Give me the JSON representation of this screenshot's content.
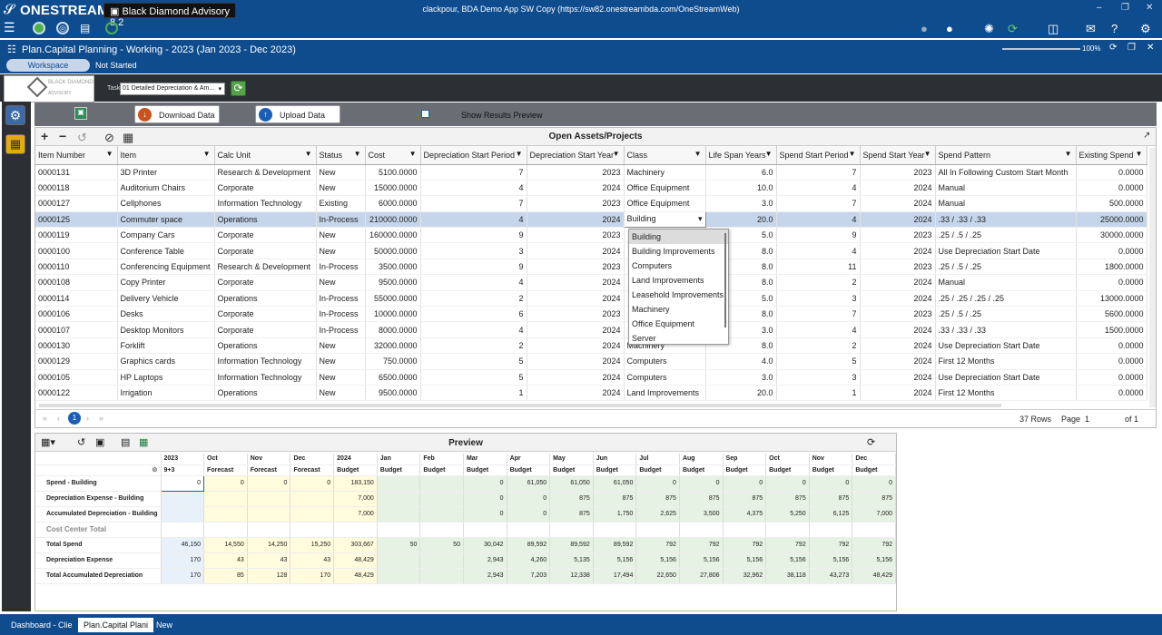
{
  "topbar": {
    "brand": "ONESTREAM",
    "app_name": "Black Diamond Advisory 8.2",
    "connection": "clackpour, BDA Demo App SW Copy (https://sw82.onestreambda.com/OneStreamWeb)",
    "zoom": "100%"
  },
  "titlebar": {
    "title": "Plan.Capital Planning  -  Working  -  2023 (Jan 2023 - Dec 2023)",
    "workspace_tab": "Workspace",
    "status": "Not Started"
  },
  "header": {
    "logo_text": "BLACK DIAMOND",
    "logo_sub": "ADVISORY",
    "task_label": "Task",
    "task_value": "01 Detailed Depreciation & Am..."
  },
  "toolbar": {
    "download_label": "Download Data",
    "upload_label": "Upload Data",
    "show_preview_label": "Show Results Preview"
  },
  "grid": {
    "title": "Open Assets/Projects",
    "columns": [
      "Item Number",
      "Item",
      "Calc Unit",
      "Status",
      "Cost",
      "Depreciation Start Period",
      "Depreciation Start Year",
      "Class",
      "Life Span Years",
      "Spend Start Period",
      "Spend Start Year",
      "Spend Pattern",
      "Existing Spend"
    ],
    "rows": [
      [
        "0000131",
        "3D Printer",
        "Research & Development",
        "New",
        "5100.0000",
        "7",
        "2023",
        "Machinery",
        "6.0",
        "7",
        "2023",
        "All In Following Custom Start Month",
        "0.0000"
      ],
      [
        "0000118",
        "Auditorium Chairs",
        "Corporate",
        "New",
        "15000.0000",
        "4",
        "2024",
        "Office Equipment",
        "10.0",
        "4",
        "2024",
        "Manual",
        "0.0000"
      ],
      [
        "0000127",
        "Cellphones",
        "Information Technology",
        "Existing",
        "6000.0000",
        "7",
        "2023",
        "Office Equipment",
        "3.0",
        "7",
        "2024",
        "Manual",
        "500.0000"
      ],
      [
        "0000125",
        "Commuter space",
        "Operations",
        "In-Process",
        "210000.0000",
        "4",
        "2024",
        "Building",
        "20.0",
        "4",
        "2024",
        ".33 / .33 / .33",
        "25000.0000"
      ],
      [
        "0000119",
        "Company Cars",
        "Corporate",
        "New",
        "160000.0000",
        "9",
        "2023",
        "",
        "5.0",
        "9",
        "2023",
        ".25  / .5 / .25",
        "30000.0000"
      ],
      [
        "0000100",
        "Conference Table",
        "Corporate",
        "New",
        "50000.0000",
        "3",
        "2024",
        "",
        "8.0",
        "4",
        "2024",
        "Use Depreciation Start Date",
        "0.0000"
      ],
      [
        "0000110",
        "Conferencing Equipment",
        "Research & Development",
        "In-Process",
        "3500.0000",
        "9",
        "2023",
        "",
        "8.0",
        "11",
        "2023",
        ".25  / .5 / .25",
        "1800.0000"
      ],
      [
        "0000108",
        "Copy Printer",
        "Corporate",
        "New",
        "9500.0000",
        "4",
        "2024",
        "",
        "8.0",
        "2",
        "2024",
        "Manual",
        "0.0000"
      ],
      [
        "0000114",
        "Delivery Vehicle",
        "Operations",
        "In-Process",
        "55000.0000",
        "2",
        "2024",
        "",
        "5.0",
        "3",
        "2024",
        ".25 / .25 / .25 / .25",
        "13000.0000"
      ],
      [
        "0000106",
        "Desks",
        "Corporate",
        "In-Process",
        "10000.0000",
        "6",
        "2023",
        "",
        "8.0",
        "7",
        "2023",
        ".25  / .5 / .25",
        "5600.0000"
      ],
      [
        "0000107",
        "Desktop Monitors",
        "Corporate",
        "In-Process",
        "8000.0000",
        "4",
        "2024",
        "",
        "3.0",
        "4",
        "2024",
        ".33 / .33 / .33",
        "1500.0000"
      ],
      [
        "0000130",
        "Forklift",
        "Operations",
        "New",
        "32000.0000",
        "2",
        "2024",
        "Machinery",
        "8.0",
        "2",
        "2024",
        "Use Depreciation Start Date",
        "0.0000"
      ],
      [
        "0000129",
        "Graphics cards",
        "Information Technology",
        "New",
        "750.0000",
        "5",
        "2024",
        "Computers",
        "4.0",
        "5",
        "2024",
        "First 12 Months",
        "0.0000"
      ],
      [
        "0000105",
        "HP Laptops",
        "Information Technology",
        "New",
        "6500.0000",
        "5",
        "2024",
        "Computers",
        "3.0",
        "3",
        "2024",
        "Use Depreciation Start Date",
        "0.0000"
      ],
      [
        "0000122",
        "Irrigation",
        "Operations",
        "New",
        "9500.0000",
        "1",
        "2024",
        "Land Improvements",
        "20.0",
        "1",
        "2024",
        "First 12 Months",
        "0.0000"
      ]
    ],
    "selected_row": 3,
    "pager": {
      "page": "1",
      "rows_text": "37 Rows",
      "page_label": "Page",
      "page_value": "1",
      "of_text": "of 1"
    }
  },
  "dropdown": {
    "selected": "Building",
    "options": [
      "Building",
      "Building Improvements",
      "Computers",
      "Land Improvements",
      "Leasehold Improvements",
      "Machinery",
      "Office Equipment",
      "Server"
    ]
  },
  "preview": {
    "title": "Preview",
    "periods": [
      {
        "p": "2023",
        "s": "9+3"
      },
      {
        "p": "Oct",
        "s": "Forecast"
      },
      {
        "p": "Nov",
        "s": "Forecast"
      },
      {
        "p": "Dec",
        "s": "Forecast"
      },
      {
        "p": "2024",
        "s": "Budget"
      },
      {
        "p": "Jan",
        "s": "Budget"
      },
      {
        "p": "Feb",
        "s": "Budget"
      },
      {
        "p": "Mar",
        "s": "Budget"
      },
      {
        "p": "Apr",
        "s": "Budget"
      },
      {
        "p": "May",
        "s": "Budget"
      },
      {
        "p": "Jun",
        "s": "Budget"
      },
      {
        "p": "Jul",
        "s": "Budget"
      },
      {
        "p": "Aug",
        "s": "Budget"
      },
      {
        "p": "Sep",
        "s": "Budget"
      },
      {
        "p": "Oct",
        "s": "Budget"
      },
      {
        "p": "Nov",
        "s": "Budget"
      },
      {
        "p": "Dec",
        "s": "Budget"
      }
    ],
    "rows": [
      {
        "label": "Spend - Building",
        "values": [
          "0",
          "0",
          "0",
          "0",
          "183,150",
          "",
          "",
          "0",
          "61,050",
          "61,050",
          "61,050",
          "0",
          "0",
          "0",
          "0",
          "0",
          "0"
        ]
      },
      {
        "label": "Depreciation Expense - Building",
        "values": [
          "",
          "",
          "",
          "",
          "7,000",
          "",
          "",
          "0",
          "0",
          "875",
          "875",
          "875",
          "875",
          "875",
          "875",
          "875",
          "875"
        ]
      },
      {
        "label": "Accumulated Depreciation - Building",
        "values": [
          "",
          "",
          "",
          "",
          "7,000",
          "",
          "",
          "0",
          "0",
          "875",
          "1,750",
          "2,625",
          "3,500",
          "4,375",
          "5,250",
          "6,125",
          "7,000"
        ]
      },
      {
        "label": "Cost Center Total",
        "values": [
          "",
          "",
          "",
          "",
          "",
          "",
          "",
          "",
          "",
          "",
          "",
          "",
          "",
          "",
          "",
          "",
          ""
        ]
      },
      {
        "label": "Total Spend",
        "values": [
          "46,150",
          "14,550",
          "14,250",
          "15,250",
          "303,667",
          "50",
          "50",
          "30,042",
          "89,592",
          "89,592",
          "89,592",
          "792",
          "792",
          "792",
          "792",
          "792",
          "792"
        ]
      },
      {
        "label": "Depreciation Expense",
        "values": [
          "170",
          "43",
          "43",
          "43",
          "48,429",
          "",
          "",
          "2,943",
          "4,260",
          "5,135",
          "5,156",
          "5,156",
          "5,156",
          "5,156",
          "5,156",
          "5,156",
          "5,156"
        ]
      },
      {
        "label": "Total Accumulated Depreciation",
        "values": [
          "170",
          "85",
          "128",
          "170",
          "48,429",
          "",
          "",
          "2,943",
          "7,203",
          "12,338",
          "17,494",
          "22,650",
          "27,806",
          "32,962",
          "38,118",
          "43,273",
          "48,429"
        ]
      }
    ]
  },
  "tabs": [
    "Dashboard - Clie",
    "Plan.Capital Plani",
    "New"
  ],
  "colors": {
    "primary": "#0f4c8e",
    "dark_panel": "#2c2f33",
    "selected_row": "#c5d6eb"
  }
}
